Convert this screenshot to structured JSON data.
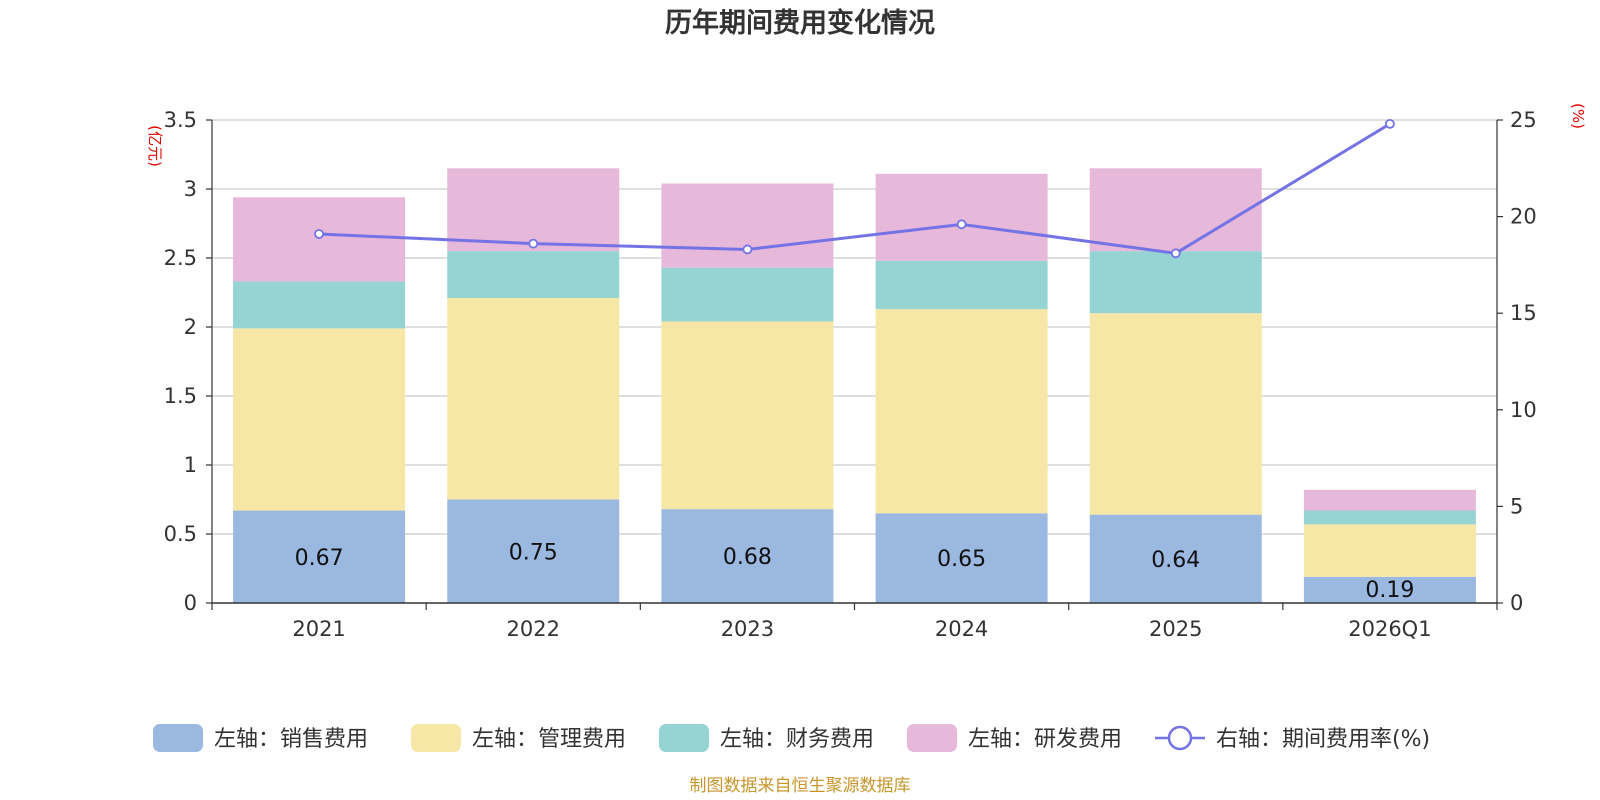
{
  "chart_data": {
    "type": "bar",
    "stacked": true,
    "title": "历年期间费用变化情况",
    "categories": [
      "2021",
      "2022",
      "2023",
      "2024",
      "2025",
      "2026Q1"
    ],
    "series": [
      {
        "name": "左轴：销售费用",
        "axis": "left",
        "color": "#9bb8e1",
        "values": [
          0.67,
          0.75,
          0.68,
          0.65,
          0.64,
          0.19
        ],
        "show_labels": true
      },
      {
        "name": "左轴：管理费用",
        "axis": "left",
        "color": "#f7e7a6",
        "values": [
          1.32,
          1.46,
          1.36,
          1.48,
          1.46,
          0.38
        ],
        "show_labels": false
      },
      {
        "name": "左轴：财务费用",
        "axis": "left",
        "color": "#96d4d4",
        "values": [
          0.34,
          0.34,
          0.39,
          0.35,
          0.45,
          0.1
        ],
        "show_labels": false
      },
      {
        "name": "左轴：研发费用",
        "axis": "left",
        "color": "#e6b8d9",
        "values": [
          0.61,
          0.6,
          0.61,
          0.63,
          0.6,
          0.15
        ],
        "show_labels": false
      }
    ],
    "line_series": {
      "name": "右轴：期间费用率(%)",
      "axis": "right",
      "color": "#7373e6",
      "values": [
        19.1,
        18.6,
        18.3,
        19.6,
        18.1,
        24.8
      ]
    },
    "left_axis": {
      "unit": "(亿元)",
      "ylim": [
        0,
        3.5
      ],
      "ticks": [
        "0",
        "0.5",
        "1",
        "1.5",
        "2",
        "2.5",
        "3",
        "3.5"
      ]
    },
    "right_axis": {
      "unit": "(%)",
      "ylim": [
        0,
        25
      ],
      "ticks": [
        "0",
        "5",
        "10",
        "15",
        "20",
        "25"
      ]
    },
    "legend_position": "bottom",
    "grid": true
  },
  "footer": {
    "source": "制图数据来自恒生聚源数据库"
  }
}
